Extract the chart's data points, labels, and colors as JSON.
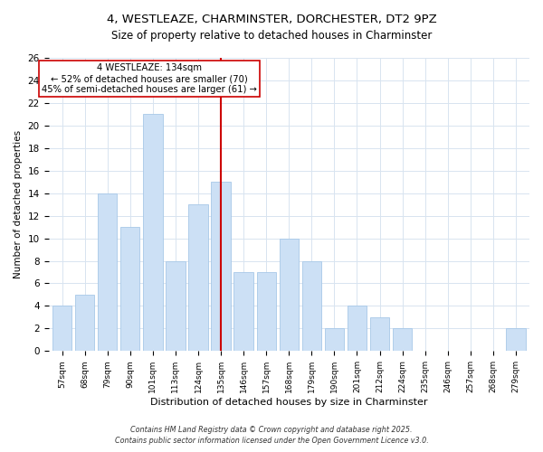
{
  "title": "4, WESTLEAZE, CHARMINSTER, DORCHESTER, DT2 9PZ",
  "subtitle": "Size of property relative to detached houses in Charminster",
  "xlabel": "Distribution of detached houses by size in Charminster",
  "ylabel": "Number of detached properties",
  "bar_labels": [
    "57sqm",
    "68sqm",
    "79sqm",
    "90sqm",
    "101sqm",
    "113sqm",
    "124sqm",
    "135sqm",
    "146sqm",
    "157sqm",
    "168sqm",
    "179sqm",
    "190sqm",
    "201sqm",
    "212sqm",
    "224sqm",
    "235sqm",
    "246sqm",
    "257sqm",
    "268sqm",
    "279sqm"
  ],
  "bar_values": [
    4,
    5,
    14,
    11,
    21,
    8,
    13,
    15,
    7,
    7,
    10,
    8,
    2,
    4,
    3,
    2,
    0,
    0,
    0,
    0,
    2
  ],
  "bar_color": "#cce0f5",
  "bar_edgecolor": "#a8c8e8",
  "marker_index": 7,
  "marker_color": "#cc0000",
  "annotation_title": "4 WESTLEAZE: 134sqm",
  "annotation_line1": "← 52% of detached houses are smaller (70)",
  "annotation_line2": "45% of semi-detached houses are larger (61) →",
  "annotation_box_edgecolor": "#cc0000",
  "ylim": [
    0,
    26
  ],
  "yticks": [
    0,
    2,
    4,
    6,
    8,
    10,
    12,
    14,
    16,
    18,
    20,
    22,
    24,
    26
  ],
  "footer1": "Contains HM Land Registry data © Crown copyright and database right 2025.",
  "footer2": "Contains public sector information licensed under the Open Government Licence v3.0.",
  "bg_color": "#ffffff",
  "grid_color": "#d8e4f0",
  "title_fontsize": 9.5,
  "subtitle_fontsize": 8.5
}
